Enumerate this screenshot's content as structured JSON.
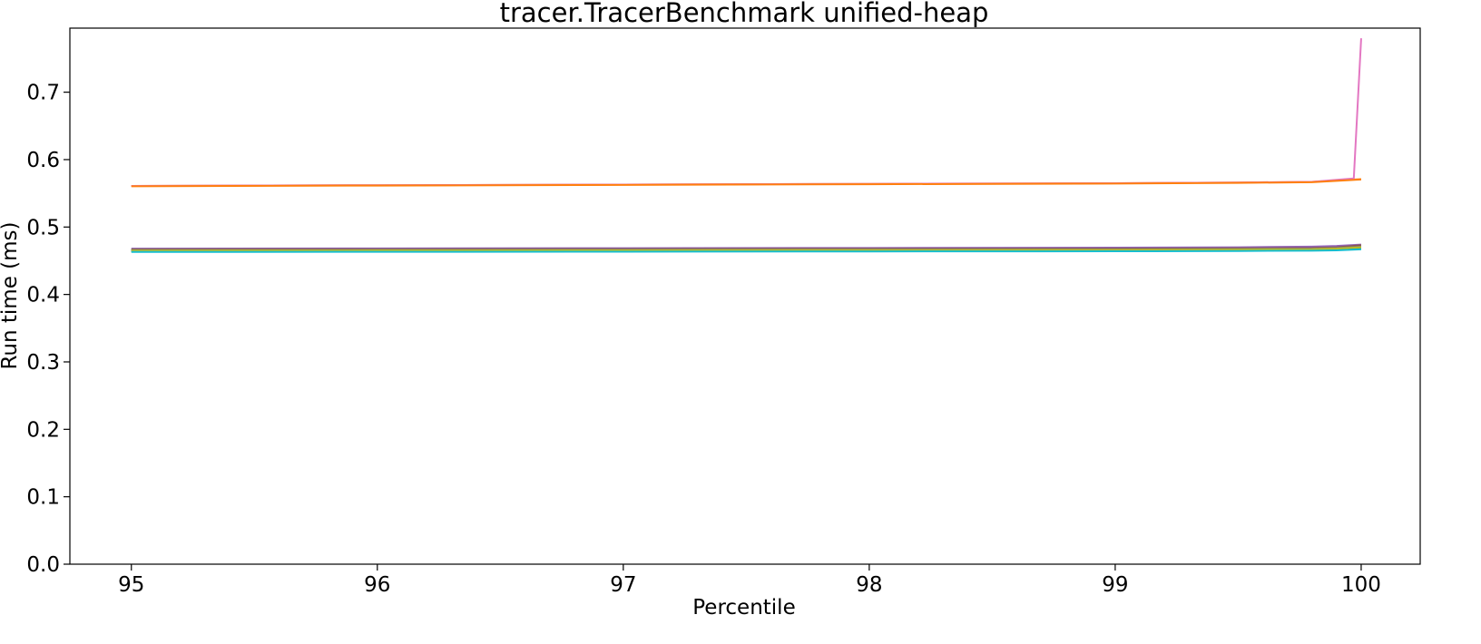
{
  "chart_data": {
    "type": "line",
    "title": "tracer.TracerBenchmark unified-heap",
    "xlabel": "Percentile",
    "ylabel": "Run time (ms)",
    "xlim": [
      94.75,
      100.24
    ],
    "ylim": [
      0.0,
      0.795
    ],
    "xticks": [
      95,
      96,
      97,
      98,
      99,
      100
    ],
    "xtick_labels": [
      "95",
      "96",
      "97",
      "98",
      "99",
      "100"
    ],
    "yticks": [
      0.0,
      0.1,
      0.2,
      0.3,
      0.4,
      0.5,
      0.6,
      0.7
    ],
    "ytick_labels": [
      "0.0",
      "0.1",
      "0.2",
      "0.3",
      "0.4",
      "0.5",
      "0.6",
      "0.7"
    ],
    "grid": false,
    "legend": false,
    "series": [
      {
        "color": "#1f77b4",
        "x": [
          95,
          96,
          97,
          98,
          99,
          99.5,
          99.8,
          99.9,
          100
        ],
        "y": [
          0.464,
          0.4642,
          0.4645,
          0.4648,
          0.465,
          0.4655,
          0.466,
          0.4665,
          0.468
        ]
      },
      {
        "color": "#ff7f0e",
        "x": [
          95,
          96,
          97,
          98,
          99,
          99.5,
          99.8,
          99.9,
          100
        ],
        "y": [
          0.561,
          0.562,
          0.563,
          0.564,
          0.565,
          0.566,
          0.567,
          0.569,
          0.571
        ]
      },
      {
        "color": "#2ca02c",
        "x": [
          95,
          96,
          97,
          98,
          99,
          99.5,
          99.8,
          99.9,
          100
        ],
        "y": [
          0.465,
          0.4653,
          0.4656,
          0.466,
          0.4665,
          0.467,
          0.4675,
          0.468,
          0.47
        ]
      },
      {
        "color": "#d62728",
        "x": [
          95,
          96,
          97,
          98,
          99,
          99.5,
          99.8,
          99.9,
          100
        ],
        "y": [
          0.466,
          0.4663,
          0.4666,
          0.467,
          0.4675,
          0.468,
          0.469,
          0.47,
          0.472
        ]
      },
      {
        "color": "#9467bd",
        "x": [
          95,
          96,
          97,
          98,
          99,
          99.5,
          99.8,
          99.9,
          100
        ],
        "y": [
          0.468,
          0.4683,
          0.4686,
          0.469,
          0.4695,
          0.47,
          0.471,
          0.472,
          0.474
        ]
      },
      {
        "color": "#8c564b",
        "x": [
          95,
          96,
          97,
          98,
          99,
          99.5,
          99.8,
          99.9,
          100
        ],
        "y": [
          0.467,
          0.4672,
          0.4675,
          0.4678,
          0.468,
          0.4685,
          0.469,
          0.47,
          0.473
        ]
      },
      {
        "color": "#e377c2",
        "x": [
          95,
          96,
          97,
          98,
          99,
          99.5,
          99.8,
          99.9,
          99.97,
          100
        ],
        "y": [
          0.561,
          0.562,
          0.563,
          0.564,
          0.565,
          0.566,
          0.567,
          0.57,
          0.572,
          0.78
        ]
      },
      {
        "color": "#7f7f7f",
        "x": [
          95,
          96,
          97,
          98,
          99,
          99.5,
          99.8,
          99.9,
          100
        ],
        "y": [
          0.466,
          0.4662,
          0.4665,
          0.4668,
          0.467,
          0.4675,
          0.468,
          0.469,
          0.471
        ]
      },
      {
        "color": "#bcbd22",
        "x": [
          95,
          96,
          97,
          98,
          99,
          99.5,
          99.8,
          99.9,
          100
        ],
        "y": [
          0.465,
          0.4652,
          0.4655,
          0.4658,
          0.466,
          0.4665,
          0.467,
          0.468,
          0.47
        ]
      },
      {
        "color": "#17becf",
        "x": [
          95,
          96,
          97,
          98,
          99,
          99.5,
          99.8,
          99.9,
          100
        ],
        "y": [
          0.463,
          0.4632,
          0.4635,
          0.4638,
          0.464,
          0.4645,
          0.465,
          0.4655,
          0.467
        ]
      },
      {
        "color": "#ff7f0e",
        "x": [
          95,
          96,
          97,
          98,
          99,
          99.5,
          99.8,
          99.9,
          100
        ],
        "y": [
          0.5605,
          0.5615,
          0.5625,
          0.5635,
          0.5645,
          0.5655,
          0.5665,
          0.5685,
          0.5705
        ]
      }
    ]
  }
}
